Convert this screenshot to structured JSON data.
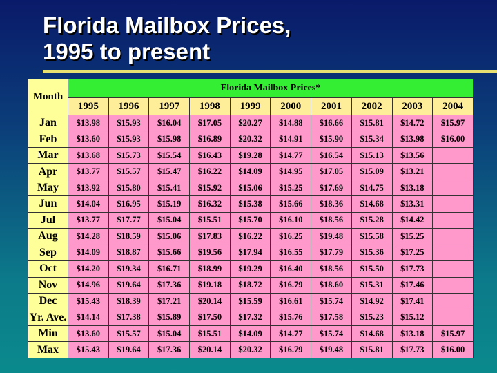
{
  "title": [
    "Florida Mailbox Prices,",
    "1995 to present"
  ],
  "table": {
    "corner": "Month",
    "caption": "Florida Mailbox Prices*",
    "columns": [
      "1995",
      "1996",
      "1997",
      "1998",
      "1999",
      "2000",
      "2001",
      "2002",
      "2003",
      "2004"
    ],
    "rows": [
      {
        "label": "Jan",
        "cells": [
          "$13.98",
          "$15.93",
          "$16.04",
          "$17.05",
          "$20.27",
          "$14.88",
          "$16.66",
          "$15.81",
          "$14.72",
          "$15.97"
        ]
      },
      {
        "label": "Feb",
        "cells": [
          "$13.60",
          "$15.93",
          "$15.98",
          "$16.89",
          "$20.32",
          "$14.91",
          "$15.90",
          "$15.34",
          "$13.98",
          "$16.00"
        ]
      },
      {
        "label": "Mar",
        "cells": [
          "$13.68",
          "$15.73",
          "$15.54",
          "$16.43",
          "$19.28",
          "$14.77",
          "$16.54",
          "$15.13",
          "$13.56",
          null
        ]
      },
      {
        "label": "Apr",
        "cells": [
          "$13.77",
          "$15.57",
          "$15.47",
          "$16.22",
          "$14.09",
          "$14.95",
          "$17.05",
          "$15.09",
          "$13.21",
          null
        ]
      },
      {
        "label": "May",
        "cells": [
          "$13.92",
          "$15.80",
          "$15.41",
          "$15.92",
          "$15.06",
          "$15.25",
          "$17.69",
          "$14.75",
          "$13.18",
          null
        ]
      },
      {
        "label": "Jun",
        "cells": [
          "$14.04",
          "$16.95",
          "$15.19",
          "$16.32",
          "$15.38",
          "$15.66",
          "$18.36",
          "$14.68",
          "$13.31",
          null
        ]
      },
      {
        "label": "Jul",
        "cells": [
          "$13.77",
          "$17.77",
          "$15.04",
          "$15.51",
          "$15.70",
          "$16.10",
          "$18.56",
          "$15.28",
          "$14.42",
          null
        ]
      },
      {
        "label": "Aug",
        "cells": [
          "$14.28",
          "$18.59",
          "$15.06",
          "$17.83",
          "$16.22",
          "$16.25",
          "$19.48",
          "$15.58",
          "$15.25",
          null
        ]
      },
      {
        "label": "Sep",
        "cells": [
          "$14.09",
          "$18.87",
          "$15.66",
          "$19.56",
          "$17.94",
          "$16.55",
          "$17.79",
          "$15.36",
          "$17.25",
          null
        ]
      },
      {
        "label": "Oct",
        "cells": [
          "$14.20",
          "$19.34",
          "$16.71",
          "$18.99",
          "$19.29",
          "$16.40",
          "$18.56",
          "$15.50",
          "$17.73",
          null
        ]
      },
      {
        "label": "Nov",
        "cells": [
          "$14.96",
          "$19.64",
          "$17.36",
          "$19.18",
          "$18.72",
          "$16.79",
          "$18.60",
          "$15.31",
          "$17.46",
          null
        ]
      },
      {
        "label": "Dec",
        "cells": [
          "$15.43",
          "$18.39",
          "$17.21",
          "$20.14",
          "$15.59",
          "$16.61",
          "$15.74",
          "$14.92",
          "$17.41",
          null
        ]
      },
      {
        "label": "Yr. Ave.",
        "cells": [
          "$14.14",
          "$17.38",
          "$15.89",
          "$17.50",
          "$17.32",
          "$15.76",
          "$17.58",
          "$15.23",
          "$15.12",
          null
        ]
      },
      {
        "label": "Min",
        "cells": [
          "$13.60",
          "$15.57",
          "$15.04",
          "$15.51",
          "$14.09",
          "$14.77",
          "$15.74",
          "$14.68",
          "$13.18",
          "$15.97"
        ]
      },
      {
        "label": "Max",
        "cells": [
          "$15.43",
          "$19.64",
          "$17.36",
          "$20.14",
          "$20.32",
          "$16.79",
          "$19.48",
          "$15.81",
          "$17.73",
          "$16.00"
        ]
      }
    ]
  }
}
